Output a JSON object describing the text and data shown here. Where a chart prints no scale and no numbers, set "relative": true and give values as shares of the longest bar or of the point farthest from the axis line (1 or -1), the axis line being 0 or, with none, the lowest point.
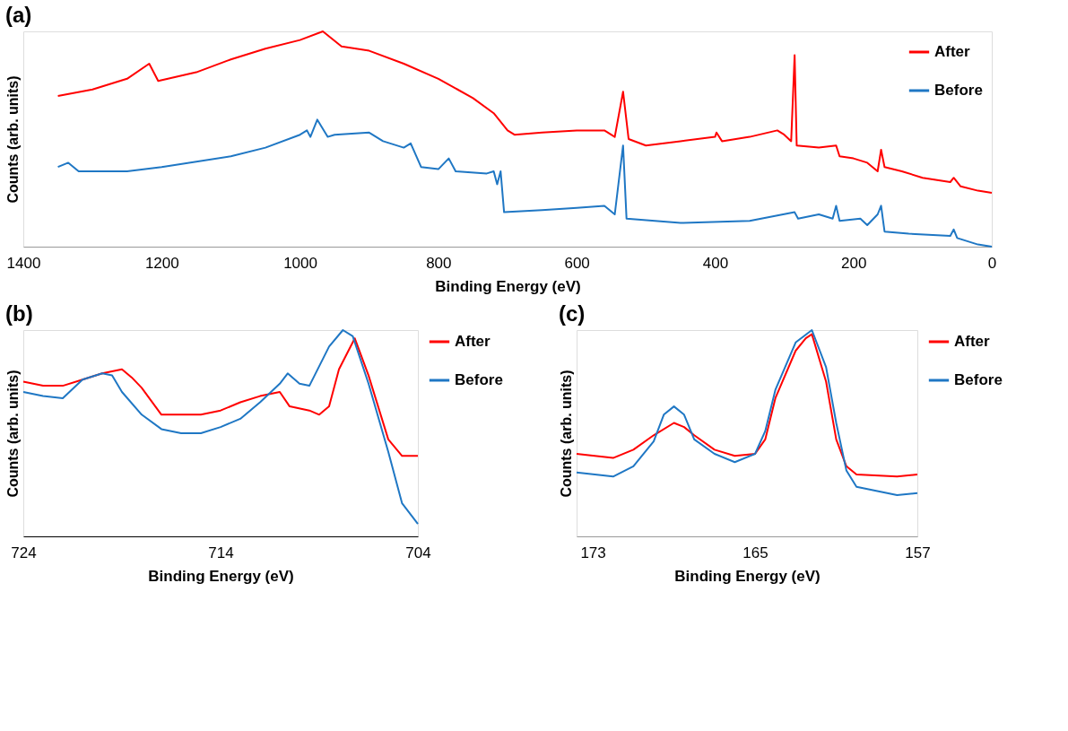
{
  "chart_data": [
    {
      "type": "line",
      "title": "(a)",
      "xlabel": "Binding Energy (eV)",
      "ylabel": "Counts (arb. units)",
      "relative": true,
      "xlim": [
        1400,
        0
      ],
      "xticks": [
        1400,
        1200,
        1000,
        800,
        600,
        400,
        200,
        0
      ],
      "legend": "top right",
      "grid": false,
      "series": [
        {
          "name": "After",
          "color": "#ff0000",
          "x": [
            1350,
            1300,
            1250,
            1218,
            1205,
            1150,
            1100,
            1050,
            1000,
            967,
            940,
            900,
            850,
            800,
            750,
            720,
            700,
            690,
            650,
            600,
            560,
            545,
            533,
            525,
            500,
            450,
            400,
            398,
            390,
            350,
            310,
            300,
            290,
            285,
            282,
            250,
            225,
            220,
            200,
            180,
            165,
            160,
            155,
            130,
            100,
            60,
            55,
            45,
            20,
            0
          ],
          "values": [
            0.7,
            0.73,
            0.78,
            0.85,
            0.77,
            0.81,
            0.87,
            0.92,
            0.96,
            1.0,
            0.93,
            0.91,
            0.85,
            0.78,
            0.69,
            0.62,
            0.54,
            0.52,
            0.53,
            0.54,
            0.54,
            0.51,
            0.72,
            0.5,
            0.47,
            0.49,
            0.51,
            0.53,
            0.49,
            0.51,
            0.54,
            0.52,
            0.49,
            0.89,
            0.47,
            0.46,
            0.47,
            0.42,
            0.41,
            0.39,
            0.35,
            0.45,
            0.37,
            0.35,
            0.32,
            0.3,
            0.32,
            0.28,
            0.26,
            0.25
          ]
        },
        {
          "name": "Before",
          "color": "#1f77c4",
          "x": [
            1350,
            1335,
            1320,
            1250,
            1200,
            1100,
            1050,
            1000,
            990,
            985,
            975,
            960,
            950,
            900,
            880,
            850,
            840,
            825,
            800,
            785,
            775,
            730,
            720,
            715,
            710,
            705,
            650,
            600,
            560,
            545,
            533,
            528,
            450,
            350,
            285,
            280,
            250,
            230,
            225,
            220,
            190,
            180,
            165,
            160,
            155,
            120,
            60,
            55,
            50,
            20,
            0
          ],
          "values": [
            0.37,
            0.39,
            0.35,
            0.35,
            0.37,
            0.42,
            0.46,
            0.52,
            0.54,
            0.51,
            0.59,
            0.51,
            0.52,
            0.53,
            0.49,
            0.46,
            0.48,
            0.37,
            0.36,
            0.41,
            0.35,
            0.34,
            0.35,
            0.29,
            0.35,
            0.16,
            0.17,
            0.18,
            0.19,
            0.15,
            0.47,
            0.13,
            0.11,
            0.12,
            0.16,
            0.13,
            0.15,
            0.13,
            0.19,
            0.12,
            0.13,
            0.1,
            0.15,
            0.19,
            0.07,
            0.06,
            0.05,
            0.08,
            0.04,
            0.01,
            0.0
          ]
        }
      ]
    },
    {
      "type": "line",
      "title": "(b)",
      "xlabel": "Binding Energy (eV)",
      "ylabel": "Counts (arb. units)",
      "relative": true,
      "xlim": [
        724,
        704
      ],
      "xticks": [
        724,
        714,
        704
      ],
      "legend": "right",
      "grid": false,
      "series": [
        {
          "name": "After",
          "color": "#ff0000",
          "x": [
            724,
            723,
            722,
            721,
            720,
            719,
            718.5,
            718,
            717,
            716,
            715,
            714,
            713,
            712,
            711,
            710.5,
            709.5,
            709,
            708.5,
            708,
            707.2,
            706.5,
            705.5,
            704.8,
            704
          ],
          "values": [
            0.75,
            0.73,
            0.73,
            0.76,
            0.79,
            0.81,
            0.77,
            0.72,
            0.59,
            0.59,
            0.59,
            0.61,
            0.65,
            0.68,
            0.7,
            0.63,
            0.61,
            0.59,
            0.63,
            0.81,
            0.96,
            0.78,
            0.47,
            0.39,
            0.39
          ]
        },
        {
          "name": "Before",
          "color": "#1f77c4",
          "x": [
            724,
            723,
            722,
            721,
            720,
            719.5,
            719,
            718,
            717,
            716,
            715,
            714,
            713,
            712,
            711,
            710.6,
            710,
            709.5,
            708.5,
            707.8,
            707.3,
            706.5,
            705.5,
            704.8,
            704
          ],
          "values": [
            0.7,
            0.68,
            0.67,
            0.76,
            0.79,
            0.78,
            0.7,
            0.59,
            0.52,
            0.5,
            0.5,
            0.53,
            0.57,
            0.65,
            0.74,
            0.79,
            0.74,
            0.73,
            0.92,
            1.0,
            0.97,
            0.74,
            0.41,
            0.16,
            0.06
          ]
        }
      ]
    },
    {
      "type": "line",
      "title": "(c)",
      "xlabel": "Binding Energy (eV)",
      "ylabel": "Counts (arb. units)",
      "relative": true,
      "xlim": [
        173.8,
        157
      ],
      "xticks": [
        173,
        165,
        157
      ],
      "legend": "right",
      "grid": false,
      "series": [
        {
          "name": "After",
          "color": "#ff0000",
          "x": [
            173.8,
            172,
            171,
            170,
            169,
            168.5,
            168,
            167,
            166,
            165,
            164.5,
            164,
            163,
            162.5,
            162.2,
            161.5,
            161,
            160.5,
            160,
            158,
            157
          ],
          "values": [
            0.4,
            0.38,
            0.42,
            0.49,
            0.55,
            0.53,
            0.49,
            0.42,
            0.39,
            0.4,
            0.47,
            0.67,
            0.9,
            0.96,
            0.98,
            0.75,
            0.47,
            0.34,
            0.3,
            0.29,
            0.3
          ]
        },
        {
          "name": "Before",
          "color": "#1f77c4",
          "x": [
            173.8,
            172,
            171,
            170,
            169.5,
            169,
            168.5,
            168,
            167,
            166,
            165,
            164.5,
            164,
            163,
            162.2,
            161.5,
            161,
            160.5,
            160,
            158,
            157
          ],
          "values": [
            0.31,
            0.29,
            0.34,
            0.46,
            0.59,
            0.63,
            0.59,
            0.47,
            0.4,
            0.36,
            0.4,
            0.51,
            0.71,
            0.94,
            1.0,
            0.82,
            0.55,
            0.32,
            0.24,
            0.2,
            0.21
          ]
        }
      ]
    }
  ]
}
